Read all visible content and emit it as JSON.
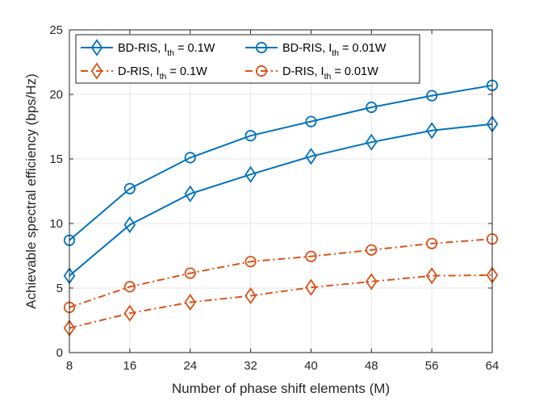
{
  "chart_data": {
    "type": "line",
    "title": "",
    "xlabel": "Number of phase shift elements (M)",
    "ylabel": "Achievable spectral efficiency (bps/Hz)",
    "x": [
      8,
      16,
      24,
      32,
      40,
      48,
      56,
      64
    ],
    "xlim": [
      8,
      64
    ],
    "ylim": [
      0,
      25
    ],
    "xticks": [
      "8",
      "16",
      "24",
      "32",
      "40",
      "48",
      "56",
      "64"
    ],
    "yticks": [
      "0",
      "5",
      "10",
      "15",
      "20",
      "25"
    ],
    "grid": true,
    "legend_position": "top-left",
    "colors": {
      "bd": "#0072BD",
      "d": "#D95319"
    },
    "series": [
      {
        "name": "BD-RIS, I_th = 0.1W",
        "label_main": "BD-RIS, I",
        "label_sub": "th",
        "label_tail": " = 0.1W",
        "color": "#0072BD",
        "dash": "solid",
        "marker": "diamond",
        "values": [
          5.95,
          9.9,
          12.3,
          13.8,
          15.2,
          16.3,
          17.2,
          17.7
        ]
      },
      {
        "name": "BD-RIS, I_th = 0.01W",
        "label_main": "BD-RIS, I",
        "label_sub": "th",
        "label_tail": " = 0.01W",
        "color": "#0072BD",
        "dash": "solid",
        "marker": "circle",
        "values": [
          8.7,
          12.7,
          15.1,
          16.8,
          17.9,
          19.0,
          19.9,
          20.7
        ]
      },
      {
        "name": "D-RIS, I_th = 0.1W",
        "label_main": "D-RIS, I",
        "label_sub": "th",
        "label_tail": " = 0.1W",
        "color": "#D95319",
        "dash": "dashdot",
        "marker": "diamond",
        "values": [
          1.9,
          3.05,
          3.9,
          4.4,
          5.05,
          5.5,
          5.95,
          6.0
        ]
      },
      {
        "name": "D-RIS, I_th = 0.01W",
        "label_main": "D-RIS, I",
        "label_sub": "th",
        "label_tail": " = 0.01W",
        "color": "#D95319",
        "dash": "dashdot",
        "marker": "circle",
        "values": [
          3.5,
          5.1,
          6.15,
          7.05,
          7.45,
          7.95,
          8.45,
          8.8
        ]
      }
    ]
  }
}
